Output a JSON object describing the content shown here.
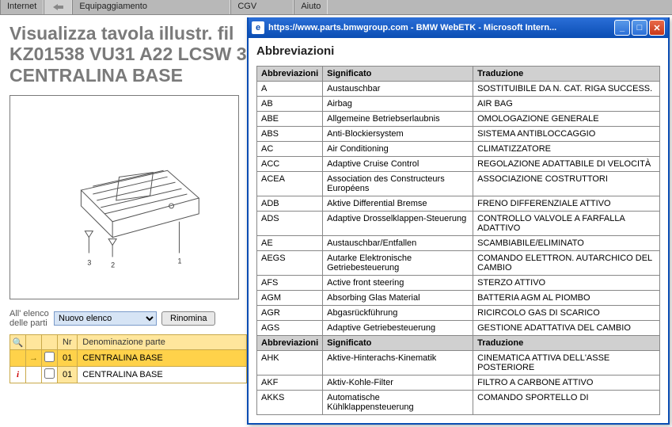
{
  "topnav": {
    "items": [
      "Internet",
      "Equipaggiamento",
      "CGV",
      "Aiuto"
    ]
  },
  "page": {
    "title_line1": "Visualizza tavola illustr. fil",
    "title_line2": "KZ01538 VU31 A22 LCSW 3",
    "title_line3": "CENTRALINA BASE"
  },
  "diagram": {
    "callouts": [
      "3",
      "2",
      "1"
    ]
  },
  "partslist": {
    "label": "All' elenco delle parti",
    "dropdown_selected": "Nuovo elenco",
    "rename_btn": "Rinomina",
    "headers": {
      "nr": "Nr",
      "denom": "Denominazione parte"
    },
    "rows": [
      {
        "selected": true,
        "icon": "arrow",
        "nr": "01",
        "desc": "CENTRALINA BASE"
      },
      {
        "selected": false,
        "icon": "info",
        "nr": "01",
        "desc": "CENTRALINA BASE"
      }
    ]
  },
  "popup": {
    "titlebar": "https://www.parts.bmwgroup.com - BMW WebETK - Microsoft Intern...",
    "heading": "Abbreviazioni",
    "headers": {
      "abbr": "Abbreviazioni",
      "sig": "Significato",
      "trad": "Traduzione"
    },
    "rows": [
      {
        "a": "A",
        "s": "Austauschbar",
        "t": "SOSTITUIBILE DA N. CAT. RIGA SUCCESS."
      },
      {
        "a": "AB",
        "s": "Airbag",
        "t": "AIR BAG"
      },
      {
        "a": "ABE",
        "s": "Allgemeine Betriebserlaubnis",
        "t": "OMOLOGAZIONE GENERALE"
      },
      {
        "a": "ABS",
        "s": "Anti-Blockiersystem",
        "t": "SISTEMA ANTIBLOCCAGGIO"
      },
      {
        "a": "AC",
        "s": "Air Conditioning",
        "t": "CLIMATIZZATORE"
      },
      {
        "a": "ACC",
        "s": "Adaptive Cruise Control",
        "t": "REGOLAZIONE ADATTABILE DI VELOCITÀ"
      },
      {
        "a": "ACEA",
        "s": "Association des Constructeurs Européens",
        "t": "ASSOCIAZIONE COSTRUTTORI"
      },
      {
        "a": "ADB",
        "s": "Aktive Differential Bremse",
        "t": "FRENO DIFFERENZIALE ATTIVO"
      },
      {
        "a": "ADS",
        "s": "Adaptive Drosselklappen-Steuerung",
        "t": "CONTROLLO VALVOLE A FARFALLA ADATTIVO"
      },
      {
        "a": "AE",
        "s": "Austauschbar/Entfallen",
        "t": "SCAMBIABILE/ELIMINATO"
      },
      {
        "a": "AEGS",
        "s": "Autarke Elektronische Getriebesteuerung",
        "t": "COMANDO ELETTRON. AUTARCHICO DEL CAMBIO"
      },
      {
        "a": "AFS",
        "s": "Active front steering",
        "t": "STERZO ATTIVO"
      },
      {
        "a": "AGM",
        "s": "Absorbing Glas Material",
        "t": "BATTERIA AGM AL PIOMBO"
      },
      {
        "a": "AGR",
        "s": "Abgasrückführung",
        "t": "RICIRCOLO GAS DI SCARICO"
      },
      {
        "a": "AGS",
        "s": "Adaptive Getriebesteuerung",
        "t": "GESTIONE ADATTATIVA DEL CAMBIO"
      }
    ],
    "rows2": [
      {
        "a": "AHK",
        "s": "Aktive-Hinterachs-Kinematik",
        "t": "CINEMATICA ATTIVA DELL'ASSE POSTERIORE"
      },
      {
        "a": "AKF",
        "s": "Aktiv-Kohle-Filter",
        "t": "FILTRO A CARBONE ATTIVO"
      },
      {
        "a": "AKKS",
        "s": "Automatische Kühlklappensteuerung",
        "t": "COMANDO SPORTELLO DI"
      }
    ]
  }
}
